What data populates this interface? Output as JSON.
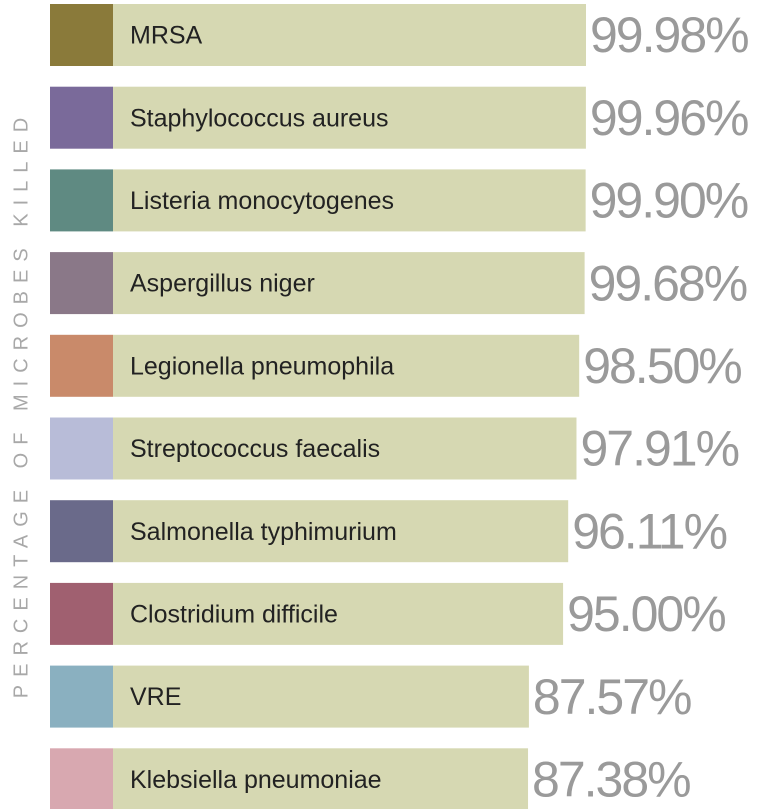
{
  "chart_data": {
    "type": "bar",
    "y_label": "PERCENTAGE OF MICROBES KILLED",
    "categories": [
      "MRSA",
      "Staphylococcus aureus",
      "Listeria monocytogenes",
      "Aspergillus niger",
      "Legionella pneumophila",
      "Streptococcus faecalis",
      "Salmonella typhimurium",
      "Clostridium difficile",
      "VRE",
      "Klebsiella pneumoniae"
    ],
    "values": [
      99.98,
      99.96,
      99.9,
      99.68,
      98.5,
      97.91,
      96.11,
      95.0,
      87.57,
      87.38
    ],
    "value_labels": [
      "99.98%",
      "99.96%",
      "99.90%",
      "99.68%",
      "98.50%",
      "97.91%",
      "96.11%",
      "95.00%",
      "87.57%",
      "87.38%"
    ],
    "color": "#d6d8b2"
  }
}
